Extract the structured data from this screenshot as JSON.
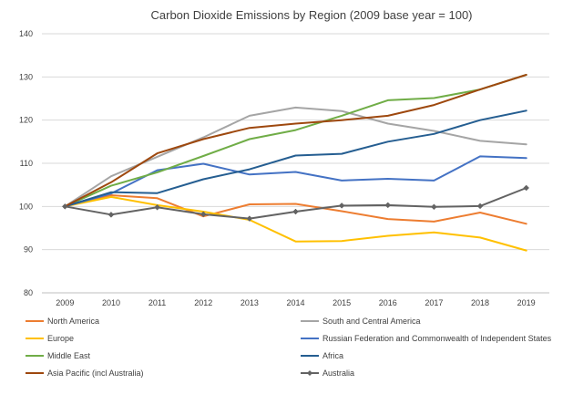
{
  "chart_data": {
    "type": "line",
    "title": "Carbon Dioxide Emissions  by Region (2009 base year = 100)",
    "xlabel": "",
    "ylabel": "",
    "categories": [
      "2009",
      "2010",
      "2011",
      "2012",
      "2013",
      "2014",
      "2015",
      "2016",
      "2017",
      "2018",
      "2019"
    ],
    "ylim": [
      80,
      140
    ],
    "yticks": [
      80,
      90,
      100,
      110,
      120,
      130,
      140
    ],
    "grid": true,
    "legend_position": "bottom",
    "series": [
      {
        "name": "North America",
        "color": "#ed7d31",
        "marker": "none",
        "values": [
          100,
          102.6,
          101.9,
          97.7,
          100.5,
          100.6,
          98.9,
          97.1,
          96.5,
          98.6,
          96.0
        ]
      },
      {
        "name": "South and Central America",
        "color": "#a5a5a5",
        "marker": "none",
        "values": [
          100,
          107.0,
          111.5,
          116.0,
          121.0,
          122.9,
          122.1,
          119.2,
          117.5,
          115.2,
          114.4
        ]
      },
      {
        "name": "Europe",
        "color": "#ffc000",
        "marker": "none",
        "values": [
          100,
          102.2,
          100.3,
          98.8,
          96.9,
          91.9,
          92.0,
          93.2,
          94.0,
          92.8,
          89.8
        ]
      },
      {
        "name": "Russian Federation and Commonwealth of Independent States",
        "color": "#4472c4",
        "marker": "none",
        "values": [
          100,
          103.0,
          108.4,
          109.9,
          107.4,
          108.0,
          106.0,
          106.4,
          106.0,
          111.6,
          111.2
        ]
      },
      {
        "name": "Middle East",
        "color": "#70ad47",
        "marker": "none",
        "values": [
          100,
          104.8,
          107.9,
          111.7,
          115.6,
          117.7,
          121.0,
          124.6,
          125.1,
          127.1,
          130.5
        ]
      },
      {
        "name": "Africa",
        "color": "#255e91",
        "marker": "none",
        "values": [
          100,
          103.3,
          103.1,
          106.3,
          108.6,
          111.8,
          112.2,
          115.0,
          116.8,
          120.0,
          122.2
        ]
      },
      {
        "name": "Asia Pacific (incl Australia)",
        "color": "#9e480e",
        "marker": "none",
        "values": [
          100,
          105.6,
          112.3,
          115.6,
          118.2,
          119.2,
          120.0,
          121.0,
          123.5,
          127.1,
          130.5
        ]
      },
      {
        "name": "Australia",
        "color": "#636363",
        "marker": "diamond",
        "values": [
          100,
          98.1,
          99.8,
          98.2,
          97.2,
          98.8,
          100.2,
          100.3,
          99.9,
          100.1,
          104.3
        ]
      }
    ]
  }
}
